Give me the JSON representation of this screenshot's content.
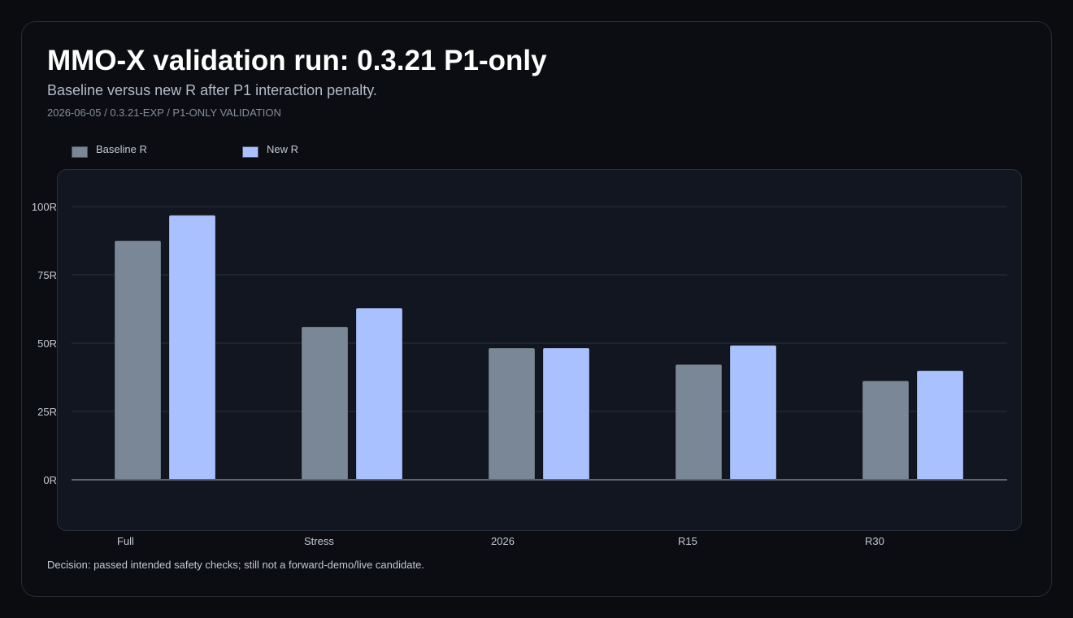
{
  "header": {
    "title": "MMO-X validation run: 0.3.21 P1-only",
    "subtitle": "Baseline versus new R after P1 interaction penalty.",
    "meta": "2026-06-05 / 0.3.21-EXP / P1-ONLY VALIDATION"
  },
  "footer": {
    "decision": "Decision: passed intended safety checks; still not a forward-demo/live candidate."
  },
  "colors": {
    "baseline": "#7a8797",
    "new": "#a9c2ff",
    "grid": "#2b313c",
    "zero_line": "#5d6574",
    "tick_text": "#c3c9d3"
  },
  "chart_data": {
    "type": "bar",
    "title": "MMO-X validation run: 0.3.21 P1-only",
    "subtitle": "Baseline versus new R after P1 interaction penalty.",
    "categories": [
      "Full",
      "Stress",
      "2026",
      "R15",
      "R30"
    ],
    "series": [
      {
        "name": "Baseline R",
        "values": [
          87.5,
          56,
          48.2,
          42.2,
          36.2
        ]
      },
      {
        "name": "New R",
        "values": [
          96.8,
          62.8,
          48.2,
          49.2,
          39.9
        ]
      }
    ],
    "y_ticks": [
      {
        "value": 0,
        "label": "0R"
      },
      {
        "value": 25,
        "label": "25R"
      },
      {
        "value": 50,
        "label": "50R"
      },
      {
        "value": 75,
        "label": "75R"
      },
      {
        "value": 100,
        "label": "100R"
      }
    ],
    "ylim": [
      0,
      100
    ],
    "grid": true,
    "legend_position": "top-left"
  }
}
